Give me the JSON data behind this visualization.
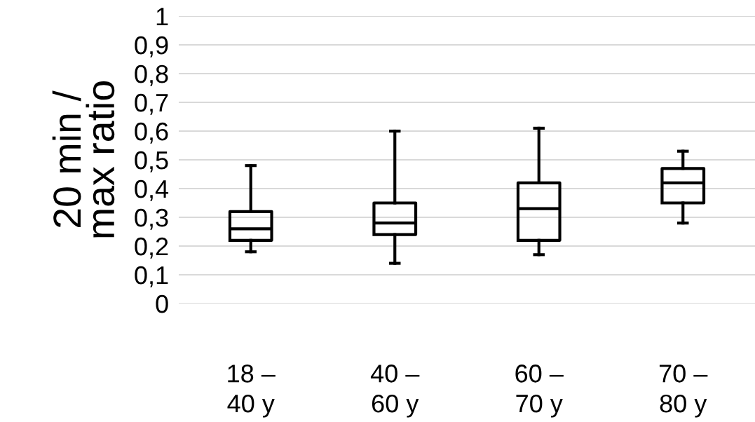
{
  "chart_data": {
    "type": "box",
    "ylabel": "20 min /\nmax ratio",
    "categories": [
      "18 –\n40 y",
      "40 –\n60 y",
      "60 –\n70 y",
      "70 –\n80 y"
    ],
    "boxes": [
      {
        "low": 0.18,
        "q1": 0.22,
        "median": 0.26,
        "q3": 0.32,
        "high": 0.48
      },
      {
        "low": 0.14,
        "q1": 0.24,
        "median": 0.28,
        "q3": 0.35,
        "high": 0.6
      },
      {
        "low": 0.17,
        "q1": 0.22,
        "median": 0.33,
        "q3": 0.42,
        "high": 0.61
      },
      {
        "low": 0.28,
        "q1": 0.35,
        "median": 0.42,
        "q3": 0.47,
        "high": 0.53
      }
    ],
    "color": "#000000",
    "ylim": [
      0,
      1
    ],
    "yticks": [
      {
        "value": 0,
        "label": "0"
      },
      {
        "value": 0.1,
        "label": "0,1"
      },
      {
        "value": 0.2,
        "label": "0,2"
      },
      {
        "value": 0.3,
        "label": "0,3"
      },
      {
        "value": 0.4,
        "label": "0,4"
      },
      {
        "value": 0.5,
        "label": "0,5"
      },
      {
        "value": 0.6,
        "label": "0,6"
      },
      {
        "value": 0.7,
        "label": "0,7"
      },
      {
        "value": 0.8,
        "label": "0,8"
      },
      {
        "value": 0.9,
        "label": "0,9"
      },
      {
        "value": 1,
        "label": "1"
      }
    ],
    "grid": "y"
  }
}
